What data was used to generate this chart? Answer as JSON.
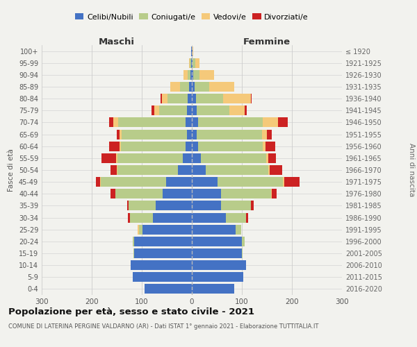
{
  "age_groups": [
    "0-4",
    "5-9",
    "10-14",
    "15-19",
    "20-24",
    "25-29",
    "30-34",
    "35-39",
    "40-44",
    "45-49",
    "50-54",
    "55-59",
    "60-64",
    "65-69",
    "70-74",
    "75-79",
    "80-84",
    "85-89",
    "90-94",
    "95-99",
    "100+"
  ],
  "birth_years": [
    "2016-2020",
    "2011-2015",
    "2006-2010",
    "2001-2005",
    "1996-2000",
    "1991-1995",
    "1986-1990",
    "1981-1985",
    "1976-1980",
    "1971-1975",
    "1966-1970",
    "1961-1965",
    "1956-1960",
    "1951-1955",
    "1946-1950",
    "1941-1945",
    "1936-1940",
    "1931-1935",
    "1926-1930",
    "1921-1925",
    "≤ 1920"
  ],
  "maschi_celibi": [
    95,
    118,
    122,
    115,
    115,
    98,
    78,
    72,
    58,
    52,
    28,
    18,
    12,
    10,
    12,
    10,
    8,
    5,
    3,
    2,
    1
  ],
  "maschi_coniugati": [
    0,
    0,
    0,
    2,
    3,
    8,
    45,
    55,
    95,
    130,
    120,
    130,
    130,
    130,
    135,
    55,
    40,
    18,
    5,
    2,
    0
  ],
  "maschi_vedovi": [
    0,
    0,
    0,
    0,
    0,
    2,
    0,
    0,
    0,
    2,
    2,
    3,
    3,
    5,
    10,
    10,
    12,
    20,
    8,
    2,
    0
  ],
  "maschi_divorziati": [
    0,
    0,
    0,
    0,
    0,
    0,
    5,
    2,
    10,
    8,
    12,
    30,
    20,
    5,
    8,
    5,
    2,
    0,
    0,
    0,
    0
  ],
  "femmine_celibi": [
    85,
    103,
    108,
    100,
    100,
    88,
    68,
    58,
    58,
    52,
    28,
    18,
    12,
    10,
    12,
    10,
    8,
    5,
    3,
    2,
    1
  ],
  "femmine_coniugati": [
    0,
    0,
    0,
    2,
    5,
    10,
    40,
    60,
    100,
    130,
    125,
    130,
    130,
    130,
    130,
    65,
    55,
    30,
    12,
    5,
    0
  ],
  "femmine_vedovi": [
    0,
    0,
    0,
    0,
    0,
    0,
    0,
    0,
    2,
    3,
    3,
    5,
    5,
    10,
    30,
    30,
    55,
    50,
    30,
    8,
    2
  ],
  "femmine_divorziati": [
    0,
    0,
    0,
    0,
    0,
    0,
    5,
    5,
    10,
    30,
    25,
    15,
    20,
    10,
    20,
    5,
    2,
    0,
    0,
    0,
    0
  ],
  "color_celibi": "#4472c4",
  "color_coniugati": "#b8cc8a",
  "color_vedovi": "#f5c97a",
  "color_divorziati": "#cc2222",
  "title": "Popolazione per età, sesso e stato civile - 2021",
  "subtitle": "COMUNE DI LATERINA PERGINE VALDARNO (AR) - Dati ISTAT 1° gennaio 2021 - Elaborazione TUTTITALIA.IT",
  "ylabel_left": "Fasce di età",
  "ylabel_right": "Anni di nascita",
  "xlabel_maschi": "Maschi",
  "xlabel_femmine": "Femmine",
  "xlim": 300,
  "bg_color": "#f2f2ee",
  "bar_height": 0.82
}
